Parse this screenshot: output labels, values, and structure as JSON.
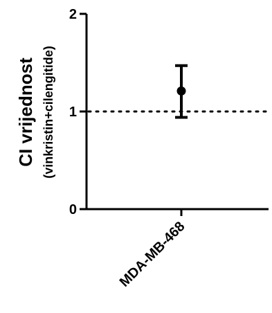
{
  "chart_data": {
    "type": "scatter",
    "ylabel": "CI vrijednost",
    "ylabel_sub": "(vinkristin+cilengitide)",
    "xlabel": "",
    "categories": [
      "MDA-MB-468"
    ],
    "values": [
      1.21
    ],
    "error_low": [
      0.94
    ],
    "error_high": [
      1.47
    ],
    "ylim": [
      0,
      2
    ],
    "yticks": [
      0,
      1,
      2
    ],
    "ytick_labels": [
      "0",
      "1",
      "2"
    ],
    "reference_line": 1,
    "grid": false,
    "colors": {
      "axis": "#000000",
      "marker": "#000000",
      "background": "#ffffff"
    }
  }
}
